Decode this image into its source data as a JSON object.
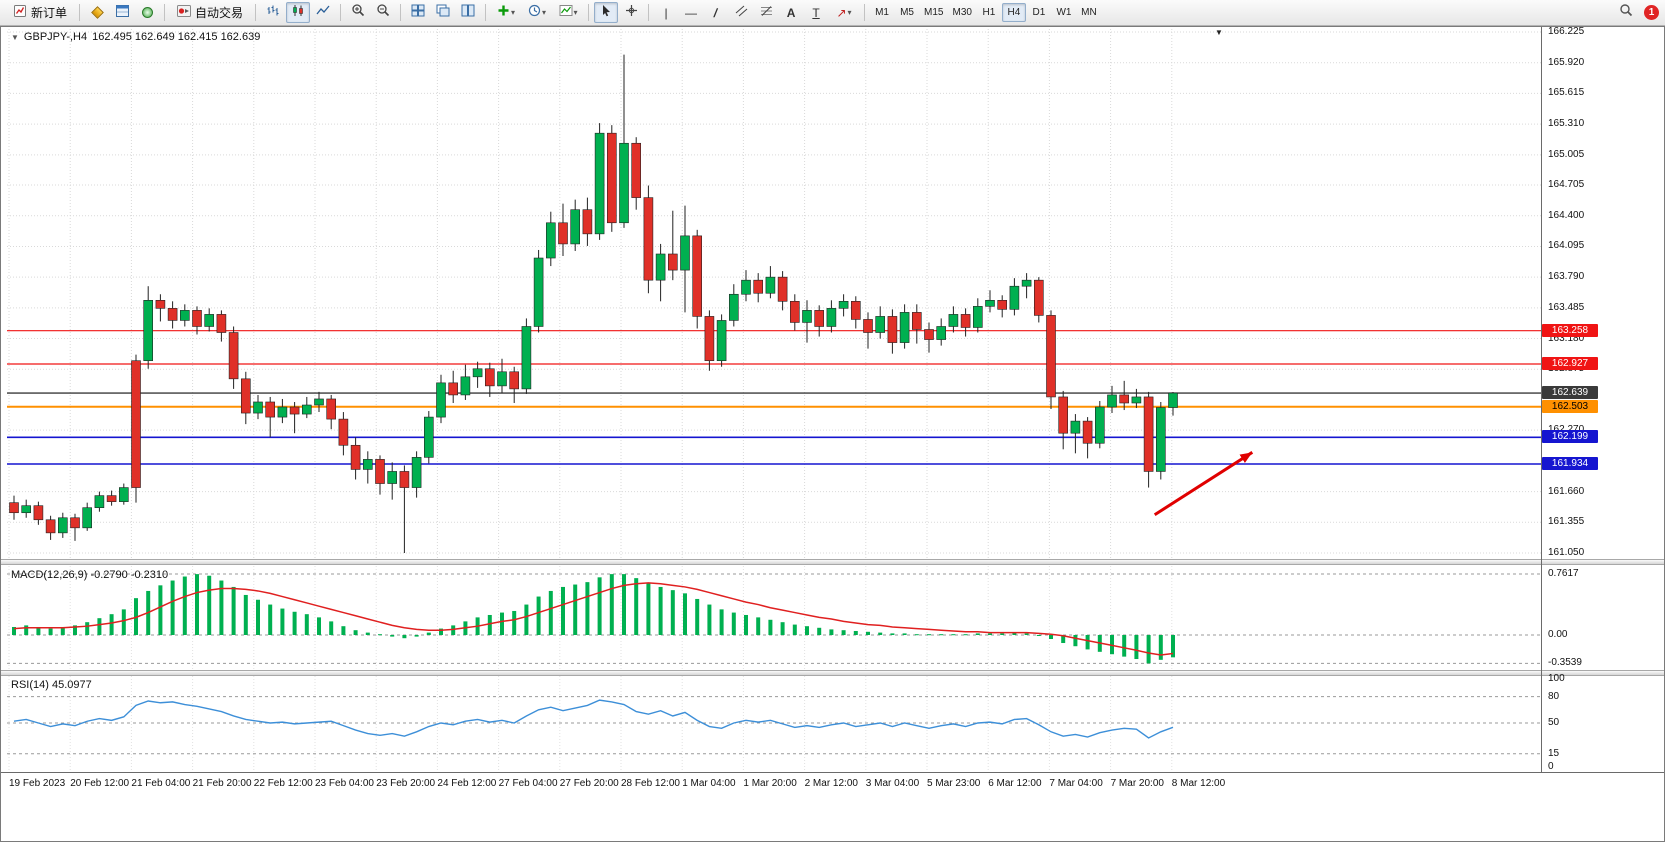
{
  "icons": {
    "one_click": "▼",
    "shift_marker": "▼",
    "chevron": "▾",
    "vline": "|",
    "hline": "—",
    "trend": "/",
    "crosshair": "+",
    "text_tool": "A",
    "label_tool": "T",
    "arrow_tool": "↗"
  },
  "toolbar": {
    "new_order_label": "新订单",
    "auto_trading_label": "自动交易",
    "timeframes": [
      "M1",
      "M5",
      "M15",
      "M30",
      "H1",
      "H4",
      "D1",
      "W1",
      "MN"
    ],
    "active_timeframe": "H4",
    "notification_badge": "1"
  },
  "chart": {
    "title": "GBPJPY-,H4",
    "ohlc_text": "162.495 162.649 162.415 162.639",
    "price_axis_labels": [
      "166.225",
      "165.920",
      "165.615",
      "165.310",
      "165.005",
      "164.705",
      "164.400",
      "164.095",
      "163.790",
      "163.485",
      "163.180",
      "162.875",
      "162.270",
      "161.660",
      "161.355",
      "161.050"
    ],
    "levels": [
      {
        "label": "163.258",
        "price": 163.258,
        "color": "#f01414",
        "tag_text": "#ffffff",
        "width": 1.2,
        "name": "resistance-line-1"
      },
      {
        "label": "162.927",
        "price": 162.927,
        "color": "#f01414",
        "tag_text": "#ffffff",
        "width": 1.2,
        "name": "resistance-line-2"
      },
      {
        "label": "162.639",
        "price": 162.639,
        "color": "#3a3a3a",
        "tag_text": "#ffffff",
        "width": 1.4,
        "name": "current-price-line"
      },
      {
        "label": "162.503",
        "price": 162.503,
        "color": "#ff9000",
        "tag_text": "#000000",
        "width": 2,
        "name": "pivot-line"
      },
      {
        "label": "162.199",
        "price": 162.199,
        "color": "#1515d0",
        "tag_text": "#ffffff",
        "width": 1.6,
        "name": "support-line-1"
      },
      {
        "label": "161.934",
        "price": 161.934,
        "color": "#1515d0",
        "tag_text": "#ffffff",
        "width": 1.6,
        "name": "support-line-2"
      }
    ]
  },
  "macd_panel": {
    "label": "MACD(12,26,9) -0.2790 -0.2310",
    "axis": [
      {
        "label": "0.7617",
        "value": 0.7617,
        "line": true
      },
      {
        "label": "0.00",
        "value": 0,
        "line": true
      },
      {
        "label": "-0.3539",
        "value": -0.3539,
        "line": true
      }
    ]
  },
  "rsi_panel": {
    "label": "RSI(14) 45.0977",
    "axis": [
      {
        "label": "100",
        "value": 100,
        "line": false
      },
      {
        "label": "80",
        "value": 80,
        "line": true
      },
      {
        "label": "50",
        "value": 50,
        "line": true
      },
      {
        "label": "15",
        "value": 15,
        "line": true
      },
      {
        "label": "0",
        "value": 0,
        "line": false
      }
    ]
  },
  "time_axis": {
    "labels": [
      "19 Feb 2023",
      "20 Feb 12:00",
      "21 Feb 04:00",
      "21 Feb 20:00",
      "22 Feb 12:00",
      "23 Feb 04:00",
      "23 Feb 20:00",
      "24 Feb 12:00",
      "27 Feb 04:00",
      "27 Feb 20:00",
      "28 Feb 12:00",
      "1 Mar 04:00",
      "1 Mar 20:00",
      "2 Mar 12:00",
      "3 Mar 04:00",
      "5 Mar 23:00",
      "6 Mar 12:00",
      "7 Mar 04:00",
      "7 Mar 20:00",
      "8 Mar 12:00"
    ]
  },
  "chart_data": {
    "type": "candlestick",
    "symbol": "GBPJPY-",
    "timeframe": "H4",
    "current_ohlc": {
      "open": 162.495,
      "high": 162.649,
      "low": 162.415,
      "close": 162.639
    },
    "y_range": [
      161.05,
      166.225
    ],
    "colors": {
      "bull": "#00b050",
      "bear": "#e03028",
      "signal": "#e02020",
      "rsi": "#3d8fd8"
    },
    "levels": [
      163.258,
      162.927,
      162.639,
      162.503,
      162.199,
      161.934
    ],
    "candles": [
      [
        161.55,
        161.62,
        161.38,
        161.45
      ],
      [
        161.45,
        161.58,
        161.4,
        161.52
      ],
      [
        161.52,
        161.56,
        161.33,
        161.38
      ],
      [
        161.38,
        161.42,
        161.18,
        161.25
      ],
      [
        161.25,
        161.45,
        161.2,
        161.4
      ],
      [
        161.4,
        161.44,
        161.17,
        161.3
      ],
      [
        161.3,
        161.55,
        161.27,
        161.5
      ],
      [
        161.5,
        161.66,
        161.46,
        161.62
      ],
      [
        161.62,
        161.67,
        161.52,
        161.56
      ],
      [
        161.56,
        161.74,
        161.53,
        161.7
      ],
      [
        162.96,
        163.02,
        161.55,
        161.7
      ],
      [
        162.96,
        163.7,
        162.88,
        163.56
      ],
      [
        163.56,
        163.62,
        163.35,
        163.48
      ],
      [
        163.48,
        163.55,
        163.28,
        163.36
      ],
      [
        163.36,
        163.52,
        163.3,
        163.46
      ],
      [
        163.46,
        163.5,
        163.22,
        163.3
      ],
      [
        163.3,
        163.48,
        163.25,
        163.42
      ],
      [
        163.42,
        163.46,
        163.15,
        163.24
      ],
      [
        163.24,
        163.3,
        162.68,
        162.78
      ],
      [
        162.78,
        162.85,
        162.33,
        162.44
      ],
      [
        162.44,
        162.62,
        162.38,
        162.55
      ],
      [
        162.55,
        162.6,
        162.2,
        162.4
      ],
      [
        162.4,
        162.58,
        162.34,
        162.5
      ],
      [
        162.5,
        162.55,
        162.24,
        162.43
      ],
      [
        162.43,
        162.6,
        162.39,
        162.52
      ],
      [
        162.52,
        162.65,
        162.45,
        162.58
      ],
      [
        162.58,
        162.62,
        162.28,
        162.38
      ],
      [
        162.38,
        162.45,
        162.02,
        162.12
      ],
      [
        162.12,
        162.2,
        161.78,
        161.88
      ],
      [
        161.88,
        162.06,
        161.74,
        161.98
      ],
      [
        161.98,
        162.02,
        161.63,
        161.74
      ],
      [
        161.74,
        161.95,
        161.58,
        161.86
      ],
      [
        161.86,
        161.92,
        161.05,
        161.7
      ],
      [
        161.7,
        162.06,
        161.6,
        162.0
      ],
      [
        162.0,
        162.46,
        161.94,
        162.4
      ],
      [
        162.4,
        162.82,
        162.34,
        162.74
      ],
      [
        162.74,
        162.86,
        162.54,
        162.62
      ],
      [
        162.62,
        162.92,
        162.57,
        162.8
      ],
      [
        162.8,
        162.95,
        162.69,
        162.88
      ],
      [
        162.88,
        162.94,
        162.6,
        162.71
      ],
      [
        162.71,
        162.98,
        162.64,
        162.85
      ],
      [
        162.85,
        162.9,
        162.54,
        162.68
      ],
      [
        162.68,
        163.38,
        162.63,
        163.3
      ],
      [
        163.3,
        164.06,
        163.24,
        163.98
      ],
      [
        163.98,
        164.44,
        163.9,
        164.33
      ],
      [
        164.33,
        164.52,
        164.0,
        164.12
      ],
      [
        164.12,
        164.56,
        164.05,
        164.46
      ],
      [
        164.46,
        164.58,
        164.1,
        164.22
      ],
      [
        164.22,
        165.32,
        164.16,
        165.22
      ],
      [
        165.22,
        165.3,
        164.24,
        164.33
      ],
      [
        164.33,
        166.0,
        164.28,
        165.12
      ],
      [
        165.12,
        165.18,
        164.46,
        164.58
      ],
      [
        164.58,
        164.7,
        163.63,
        163.76
      ],
      [
        163.76,
        164.12,
        163.55,
        164.02
      ],
      [
        164.02,
        164.45,
        163.76,
        163.86
      ],
      [
        163.86,
        164.5,
        163.44,
        164.2
      ],
      [
        164.2,
        164.26,
        163.28,
        163.4
      ],
      [
        163.4,
        163.46,
        162.86,
        162.96
      ],
      [
        162.96,
        163.42,
        162.9,
        163.36
      ],
      [
        163.36,
        163.72,
        163.3,
        163.62
      ],
      [
        163.62,
        163.86,
        163.55,
        163.76
      ],
      [
        163.76,
        163.83,
        163.54,
        163.63
      ],
      [
        163.63,
        163.9,
        163.58,
        163.79
      ],
      [
        163.79,
        163.85,
        163.46,
        163.55
      ],
      [
        163.55,
        163.62,
        163.26,
        163.34
      ],
      [
        163.34,
        163.56,
        163.14,
        163.46
      ],
      [
        163.46,
        163.51,
        163.2,
        163.3
      ],
      [
        163.3,
        163.56,
        163.24,
        163.48
      ],
      [
        163.48,
        163.62,
        163.4,
        163.55
      ],
      [
        163.55,
        163.6,
        163.28,
        163.37
      ],
      [
        163.37,
        163.44,
        163.08,
        163.24
      ],
      [
        163.24,
        163.5,
        163.18,
        163.4
      ],
      [
        163.4,
        163.47,
        163.03,
        163.14
      ],
      [
        163.14,
        163.52,
        163.08,
        163.44
      ],
      [
        163.44,
        163.52,
        163.13,
        163.27
      ],
      [
        163.27,
        163.34,
        163.04,
        163.17
      ],
      [
        163.17,
        163.38,
        163.11,
        163.3
      ],
      [
        163.3,
        163.5,
        163.24,
        163.42
      ],
      [
        163.42,
        163.48,
        163.2,
        163.29
      ],
      [
        163.29,
        163.58,
        163.24,
        163.5
      ],
      [
        163.5,
        163.66,
        163.44,
        163.56
      ],
      [
        163.56,
        163.61,
        163.39,
        163.47
      ],
      [
        163.47,
        163.78,
        163.41,
        163.7
      ],
      [
        163.7,
        163.83,
        163.58,
        163.76
      ],
      [
        163.76,
        163.79,
        163.34,
        163.41
      ],
      [
        163.41,
        163.46,
        162.48,
        162.6
      ],
      [
        162.6,
        162.66,
        162.08,
        162.24
      ],
      [
        162.24,
        162.43,
        162.04,
        162.36
      ],
      [
        162.36,
        162.4,
        161.99,
        162.14
      ],
      [
        162.14,
        162.56,
        162.09,
        162.5
      ],
      [
        162.5,
        162.71,
        162.44,
        162.62
      ],
      [
        162.62,
        162.76,
        162.47,
        162.54
      ],
      [
        162.54,
        162.68,
        162.49,
        162.6
      ],
      [
        162.6,
        162.65,
        161.7,
        161.86
      ],
      [
        161.86,
        162.55,
        161.78,
        162.495
      ],
      [
        162.495,
        162.649,
        162.415,
        162.639
      ]
    ],
    "macd": {
      "params": "12,26,9",
      "main_value": -0.279,
      "signal_value": -0.231,
      "range": [
        -0.3539,
        0.7617
      ],
      "histogram": [
        0.1,
        0.12,
        0.1,
        0.08,
        0.1,
        0.12,
        0.16,
        0.21,
        0.26,
        0.32,
        0.46,
        0.55,
        0.62,
        0.68,
        0.73,
        0.76,
        0.74,
        0.68,
        0.6,
        0.5,
        0.44,
        0.38,
        0.33,
        0.29,
        0.26,
        0.22,
        0.17,
        0.11,
        0.06,
        0.03,
        0.01,
        -0.02,
        -0.04,
        -0.02,
        0.03,
        0.08,
        0.12,
        0.17,
        0.22,
        0.25,
        0.28,
        0.3,
        0.38,
        0.48,
        0.55,
        0.6,
        0.63,
        0.66,
        0.72,
        0.76,
        0.76,
        0.71,
        0.65,
        0.6,
        0.56,
        0.52,
        0.45,
        0.38,
        0.32,
        0.28,
        0.25,
        0.22,
        0.19,
        0.16,
        0.13,
        0.11,
        0.09,
        0.07,
        0.06,
        0.05,
        0.04,
        0.03,
        0.02,
        0.02,
        0.01,
        0.01,
        0.01,
        0.01,
        0.01,
        0.02,
        0.02,
        0.02,
        0.03,
        0.02,
        0.0,
        -0.05,
        -0.1,
        -0.14,
        -0.18,
        -0.21,
        -0.24,
        -0.27,
        -0.3,
        -0.354,
        -0.31,
        -0.279
      ],
      "signal": [
        0.08,
        0.09,
        0.09,
        0.09,
        0.09,
        0.1,
        0.11,
        0.13,
        0.15,
        0.18,
        0.22,
        0.28,
        0.35,
        0.42,
        0.48,
        0.53,
        0.56,
        0.58,
        0.58,
        0.57,
        0.55,
        0.52,
        0.48,
        0.44,
        0.4,
        0.36,
        0.32,
        0.28,
        0.24,
        0.2,
        0.16,
        0.12,
        0.09,
        0.07,
        0.06,
        0.06,
        0.07,
        0.09,
        0.11,
        0.14,
        0.17,
        0.19,
        0.23,
        0.28,
        0.33,
        0.38,
        0.43,
        0.48,
        0.53,
        0.58,
        0.62,
        0.64,
        0.65,
        0.64,
        0.62,
        0.6,
        0.57,
        0.53,
        0.49,
        0.45,
        0.41,
        0.38,
        0.34,
        0.31,
        0.28,
        0.25,
        0.22,
        0.2,
        0.17,
        0.15,
        0.13,
        0.12,
        0.1,
        0.09,
        0.08,
        0.07,
        0.06,
        0.05,
        0.04,
        0.04,
        0.03,
        0.03,
        0.03,
        0.03,
        0.02,
        0.01,
        -0.01,
        -0.04,
        -0.07,
        -0.1,
        -0.13,
        -0.16,
        -0.19,
        -0.225,
        -0.25,
        -0.231
      ]
    },
    "rsi": {
      "period": 14,
      "current": 45.0977,
      "values": [
        52,
        54,
        50,
        46,
        49,
        47,
        52,
        55,
        53,
        57,
        70,
        75,
        73,
        74,
        71,
        69,
        66,
        63,
        58,
        54,
        52,
        50,
        51,
        49,
        50,
        51,
        52,
        47,
        42,
        38,
        36,
        38,
        35,
        40,
        46,
        50,
        48,
        52,
        54,
        51,
        53,
        50,
        58,
        65,
        68,
        64,
        67,
        70,
        76,
        74,
        71,
        63,
        60,
        64,
        58,
        62,
        53,
        46,
        44,
        50,
        53,
        51,
        53,
        49,
        45,
        47,
        45,
        48,
        50,
        46,
        48,
        50,
        46,
        50,
        47,
        44,
        47,
        49,
        46,
        50,
        51,
        49,
        54,
        55,
        48,
        40,
        35,
        37,
        34,
        39,
        42,
        44,
        43,
        33,
        40,
        45.1
      ]
    },
    "annotation": {
      "type": "arrow",
      "color": "#e00000",
      "from": {
        "candle": 93.5,
        "price": 161.43
      },
      "to": {
        "candle": 101.5,
        "price": 162.05
      }
    }
  }
}
